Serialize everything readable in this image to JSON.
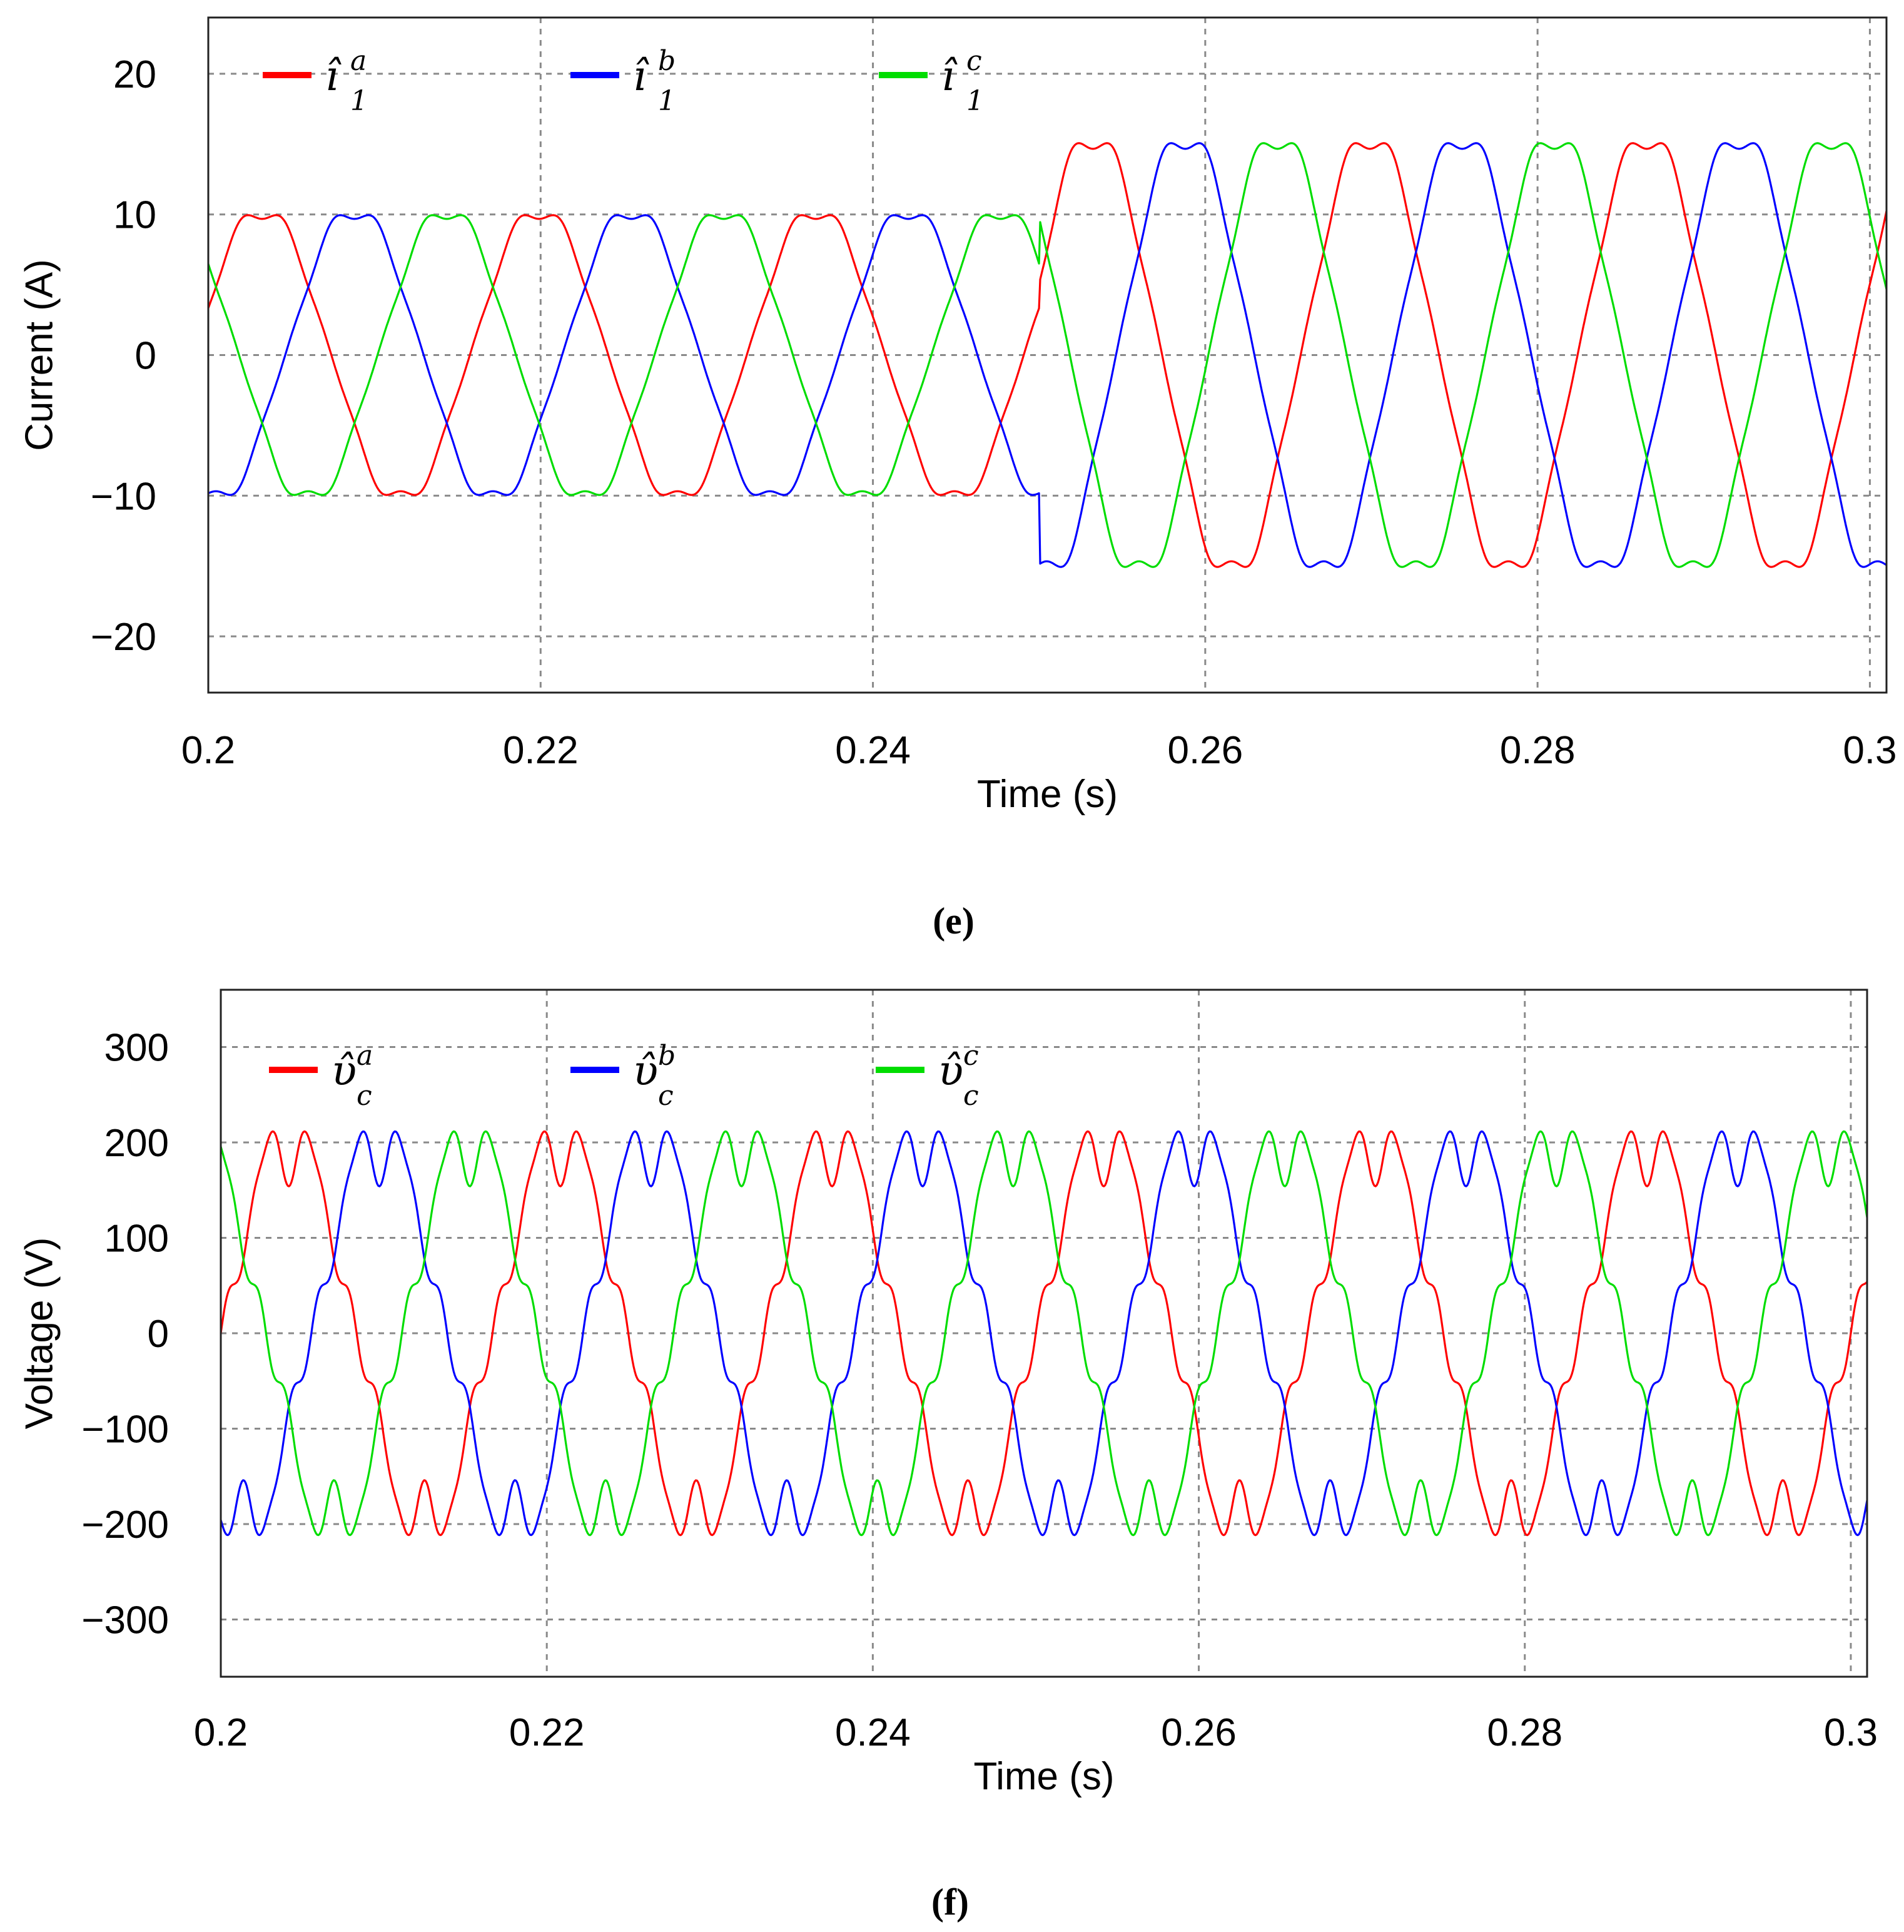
{
  "chart_data": [
    {
      "id": "e",
      "type": "line",
      "caption": "(e)",
      "xlabel": "Time (s)",
      "ylabel": "Current (A)",
      "xlim": [
        0.2,
        0.301
      ],
      "ylim": [
        -24,
        24
      ],
      "xticks": [
        "0.2",
        "0.22",
        "0.24",
        "0.26",
        "0.28",
        "0.3"
      ],
      "xtick_values": [
        0.2,
        0.22,
        0.24,
        0.26,
        0.28,
        0.3
      ],
      "yticks": [
        "20",
        "10",
        "0",
        "−10",
        "−20"
      ],
      "ytick_values": [
        20,
        10,
        0,
        -10,
        -20
      ],
      "grid": true,
      "legend_placement": "top",
      "waveform": {
        "frequency_hz": 60,
        "amplitude_before": 10.3,
        "amplitude_after": 15.6,
        "step_time_s": 0.25,
        "harmonic_5_ratio": 0.035,
        "harmonic_7_ratio": 0.025,
        "phase_a_at_start_deg": 20
      },
      "series": [
        {
          "name": "î",
          "sup": "a",
          "sub": "1",
          "color": "#ff0000",
          "phase_deg": 0
        },
        {
          "name": "î",
          "sup": "b",
          "sub": "1",
          "color": "#0000ff",
          "phase_deg": -120
        },
        {
          "name": "î",
          "sup": "c",
          "sub": "1",
          "color": "#00dd00",
          "phase_deg": 120
        }
      ]
    },
    {
      "id": "f",
      "type": "line",
      "caption": "(f)",
      "xlabel": "Time (s)",
      "ylabel": "Voltage (V)",
      "xlim": [
        0.2,
        0.301
      ],
      "ylim": [
        -360,
        360
      ],
      "xticks": [
        "0.2",
        "0.22",
        "0.24",
        "0.26",
        "0.28",
        "0.3"
      ],
      "xtick_values": [
        0.2,
        0.22,
        0.24,
        0.26,
        0.28,
        0.3
      ],
      "yticks": [
        "300",
        "200",
        "100",
        "0",
        "−100",
        "−200",
        "−300"
      ],
      "ytick_values": [
        300,
        200,
        100,
        0,
        -100,
        -200,
        -300
      ],
      "grid": true,
      "legend_placement": "top",
      "waveform": {
        "frequency_hz": 60,
        "amplitude": 200,
        "harmonic_5_ratio": 0.1,
        "harmonic_7_ratio": 0.08,
        "harmonic_11_ratio": 0.05,
        "phase_a_at_start_deg": 0
      },
      "series": [
        {
          "name": "υ̂",
          "sup": "a",
          "sub": "c",
          "color": "#ff0000",
          "phase_deg": 0
        },
        {
          "name": "υ̂",
          "sup": "b",
          "sub": "c",
          "color": "#0000ff",
          "phase_deg": -120
        },
        {
          "name": "υ̂",
          "sup": "c",
          "sub": "c",
          "color": "#00dd00",
          "phase_deg": 120
        }
      ]
    }
  ]
}
